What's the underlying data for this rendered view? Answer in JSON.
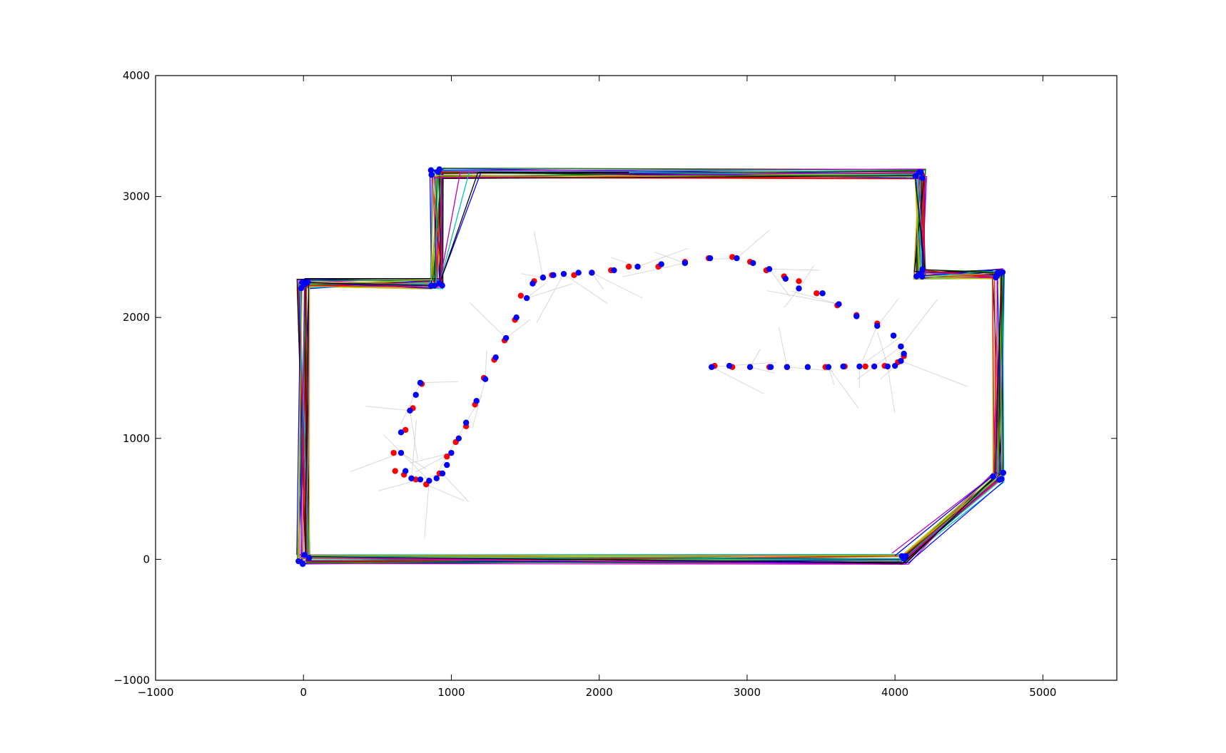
{
  "chart_data": {
    "type": "line",
    "title": "",
    "xlabel": "",
    "ylabel": "",
    "xlim": [
      -1000,
      5500
    ],
    "ylim": [
      -1000,
      4000
    ],
    "xticks": [
      -1000,
      0,
      1000,
      2000,
      3000,
      4000,
      5000
    ],
    "yticks": [
      -1000,
      0,
      1000,
      2000,
      3000,
      4000
    ],
    "grid": false,
    "legend": "none",
    "colors": {
      "walls": [
        "#0000ff",
        "#008000",
        "#ff0000",
        "#00bfbf",
        "#bf00bf",
        "#bfbf00",
        "#000000"
      ],
      "corner_markers": "#0000ff",
      "path_estimate": "#ff0000",
      "path_ground_truth": "#0000ff",
      "scan_rays": "#c8c8c8"
    },
    "room_outline": [
      [
        0,
        0
      ],
      [
        0,
        2280
      ],
      [
        900,
        2280
      ],
      [
        900,
        3190
      ],
      [
        4170,
        3190
      ],
      [
        4170,
        2360
      ],
      [
        4700,
        2360
      ],
      [
        4700,
        680
      ],
      [
        4050,
        0
      ],
      [
        0,
        0
      ]
    ],
    "red_points": [
      [
        2780,
        1600
      ],
      [
        2900,
        1590
      ],
      [
        3150,
        1590
      ],
      [
        3270,
        1590
      ],
      [
        3530,
        1590
      ],
      [
        3660,
        1595
      ],
      [
        3800,
        1595
      ],
      [
        3930,
        1600
      ],
      [
        4020,
        1630
      ],
      [
        4060,
        1680
      ],
      [
        4040,
        1760
      ],
      [
        3990,
        1850
      ],
      [
        3880,
        1950
      ],
      [
        3740,
        2020
      ],
      [
        3610,
        2100
      ],
      [
        3470,
        2200
      ],
      [
        3350,
        2300
      ],
      [
        3250,
        2340
      ],
      [
        3130,
        2390
      ],
      [
        3020,
        2460
      ],
      [
        2900,
        2500
      ],
      [
        2740,
        2490
      ],
      [
        2580,
        2460
      ],
      [
        2400,
        2420
      ],
      [
        2200,
        2420
      ],
      [
        2080,
        2390
      ],
      [
        1950,
        2370
      ],
      [
        1830,
        2350
      ],
      [
        1680,
        2350
      ],
      [
        1560,
        2300
      ],
      [
        1470,
        2180
      ],
      [
        1430,
        1980
      ],
      [
        1360,
        1810
      ],
      [
        1290,
        1650
      ],
      [
        1220,
        1500
      ],
      [
        1160,
        1280
      ],
      [
        1100,
        1100
      ],
      [
        1030,
        970
      ],
      [
        970,
        850
      ],
      [
        920,
        710
      ],
      [
        830,
        620
      ],
      [
        760,
        660
      ],
      [
        680,
        700
      ],
      [
        620,
        730
      ],
      [
        610,
        880
      ],
      [
        690,
        1070
      ],
      [
        740,
        1250
      ],
      [
        800,
        1450
      ]
    ],
    "blue_points": [
      [
        2760,
        1590
      ],
      [
        2880,
        1600
      ],
      [
        3020,
        1590
      ],
      [
        3160,
        1590
      ],
      [
        3270,
        1590
      ],
      [
        3410,
        1590
      ],
      [
        3550,
        1590
      ],
      [
        3650,
        1595
      ],
      [
        3760,
        1595
      ],
      [
        3860,
        1595
      ],
      [
        3950,
        1595
      ],
      [
        4000,
        1600
      ],
      [
        4040,
        1640
      ],
      [
        4060,
        1700
      ],
      [
        4040,
        1760
      ],
      [
        3990,
        1850
      ],
      [
        3880,
        1930
      ],
      [
        3740,
        2010
      ],
      [
        3620,
        2110
      ],
      [
        3510,
        2200
      ],
      [
        3350,
        2240
      ],
      [
        3260,
        2320
      ],
      [
        3150,
        2400
      ],
      [
        3040,
        2450
      ],
      [
        2930,
        2490
      ],
      [
        2750,
        2490
      ],
      [
        2580,
        2450
      ],
      [
        2420,
        2440
      ],
      [
        2260,
        2420
      ],
      [
        2100,
        2390
      ],
      [
        1950,
        2370
      ],
      [
        1860,
        2370
      ],
      [
        1760,
        2360
      ],
      [
        1690,
        2350
      ],
      [
        1620,
        2330
      ],
      [
        1550,
        2280
      ],
      [
        1510,
        2160
      ],
      [
        1440,
        2000
      ],
      [
        1370,
        1830
      ],
      [
        1300,
        1670
      ],
      [
        1230,
        1490
      ],
      [
        1170,
        1310
      ],
      [
        1100,
        1130
      ],
      [
        1050,
        1000
      ],
      [
        1000,
        880
      ],
      [
        970,
        780
      ],
      [
        940,
        710
      ],
      [
        900,
        670
      ],
      [
        850,
        650
      ],
      [
        790,
        660
      ],
      [
        730,
        670
      ],
      [
        690,
        730
      ],
      [
        660,
        880
      ],
      [
        660,
        1050
      ],
      [
        720,
        1230
      ],
      [
        760,
        1360
      ],
      [
        790,
        1460
      ]
    ]
  }
}
